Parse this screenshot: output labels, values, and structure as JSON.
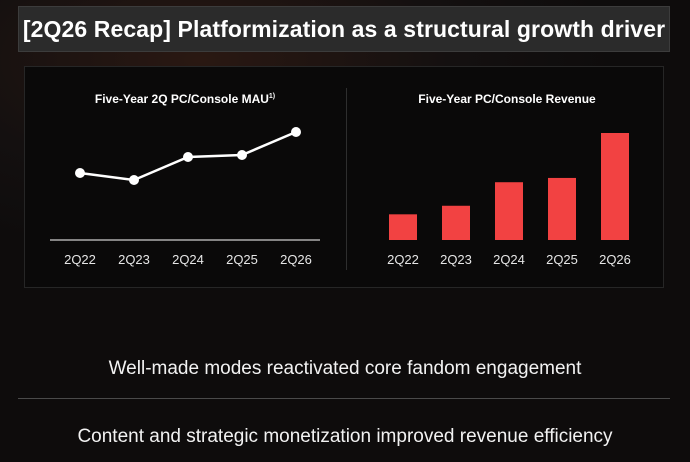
{
  "header": {
    "title": "[2Q26 Recap] Platformization as a structural growth driver"
  },
  "chart_data": [
    {
      "type": "line",
      "title": "Five-Year 2Q PC/Console MAU",
      "title_footnote": "1)",
      "categories": [
        "2Q22",
        "2Q23",
        "2Q24",
        "2Q25",
        "2Q26"
      ],
      "values": [
        67,
        60,
        83,
        85,
        108
      ],
      "ylim": [
        0,
        120
      ],
      "color": "#ffffff",
      "grid": false
    },
    {
      "type": "bar",
      "title": "Five-Year PC/Console Revenue",
      "categories": [
        "2Q22",
        "2Q23",
        "2Q24",
        "2Q25",
        "2Q26"
      ],
      "values": [
        24,
        32,
        54,
        58,
        100
      ],
      "ylim": [
        0,
        100
      ],
      "color": "#f24242",
      "grid": false
    }
  ],
  "statements": [
    "Well-made modes reactivated core fandom engagement",
    "Content and strategic monetization improved revenue efficiency"
  ]
}
